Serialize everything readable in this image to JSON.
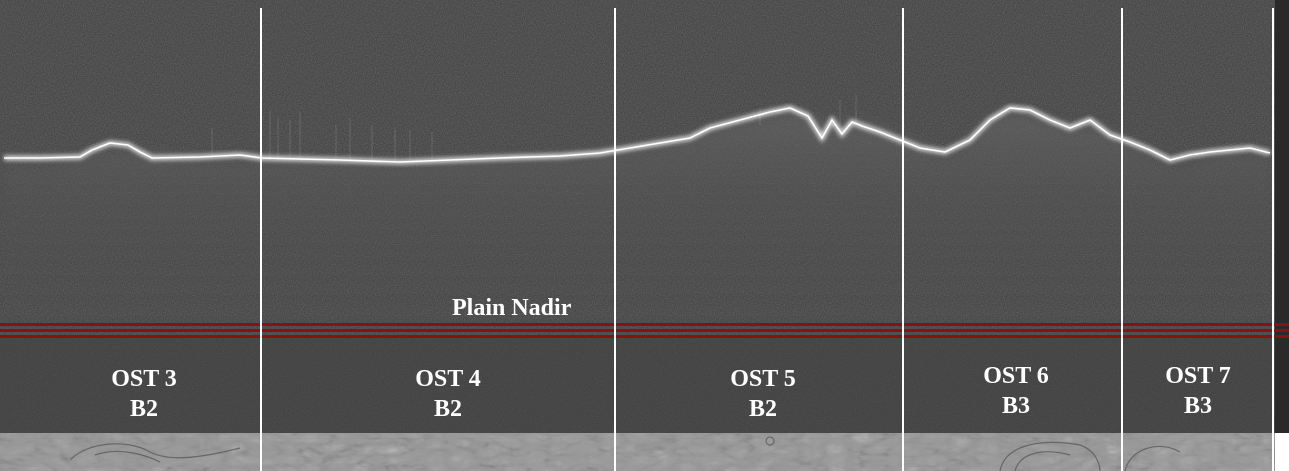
{
  "figure": {
    "track_label": "Plain Nadir",
    "segments": [
      {
        "orbit": "OST 3",
        "band": "B2"
      },
      {
        "orbit": "OST 4",
        "band": "B2"
      },
      {
        "orbit": "OST 5",
        "band": "B2"
      },
      {
        "orbit": "OST 6",
        "band": "B3"
      },
      {
        "orbit": "OST 7",
        "band": "B3"
      }
    ]
  },
  "colors": {
    "radar_background": "#3a3a3a",
    "surface_echo": "#f2f2f2",
    "separator": "#ffffff",
    "track_lines": "#8b1010",
    "label_text": "#ffffff",
    "context_strip": "#9a9a9a"
  }
}
